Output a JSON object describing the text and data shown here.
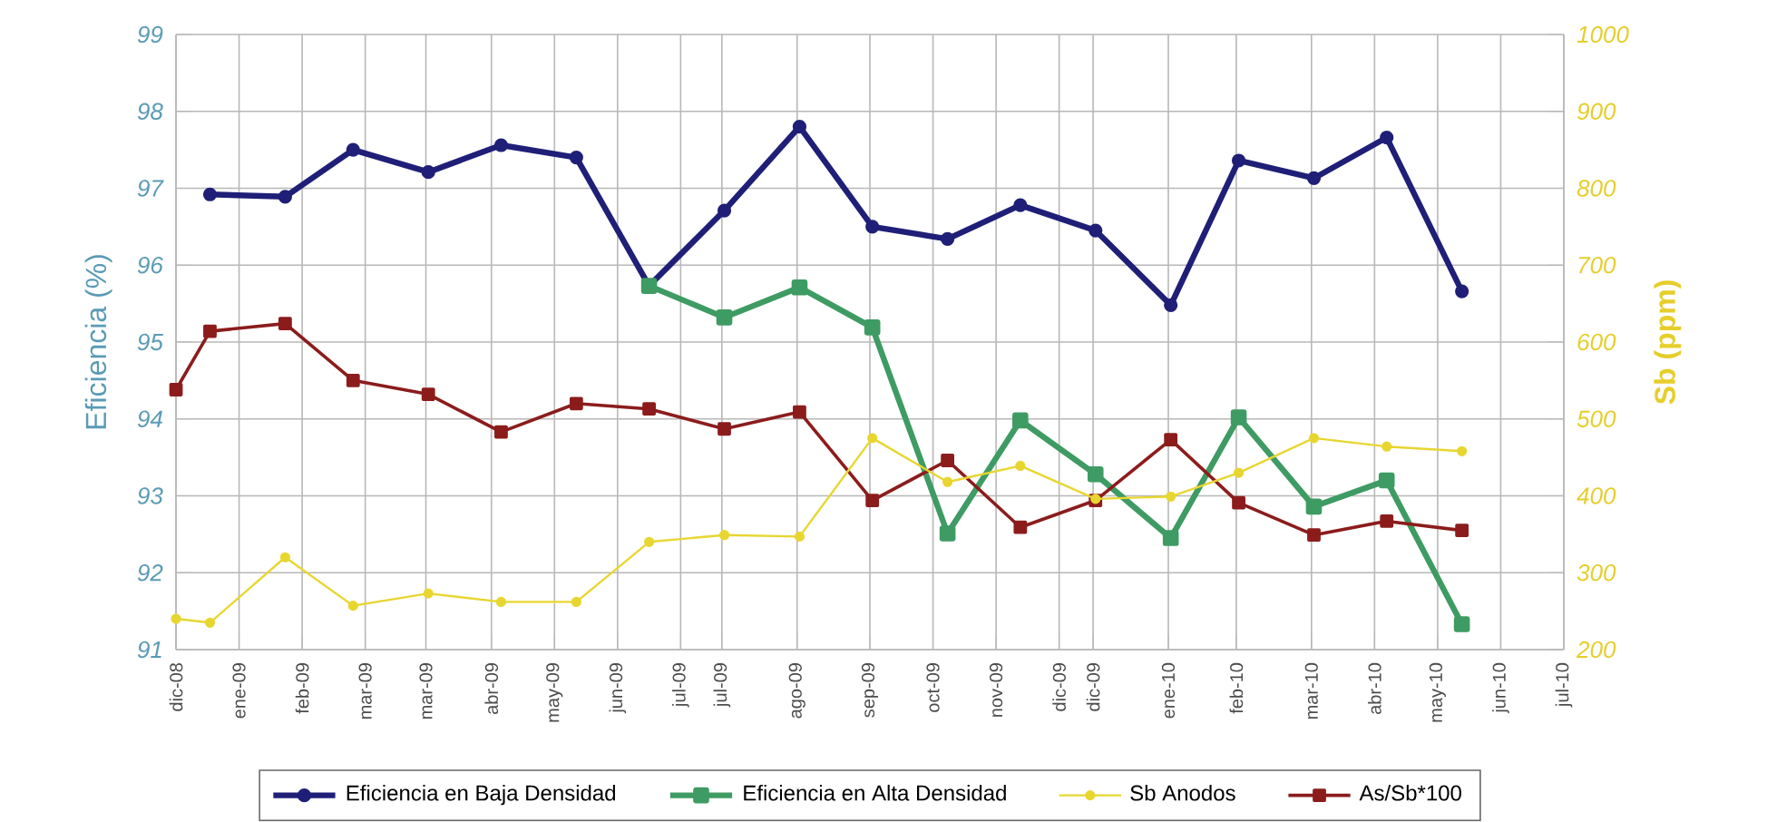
{
  "chart_data": {
    "type": "line",
    "ylabel": "Eficiencia (%)",
    "y2label": "Sb (ppm)",
    "xlim": [
      "2008-12-18",
      "2010-07-13"
    ],
    "xticks": [
      {
        "value": "2008-12-18",
        "label": "dic-08"
      },
      {
        "value": "2009-01-13",
        "label": "ene-09"
      },
      {
        "value": "2009-02-08",
        "label": "feb-09"
      },
      {
        "value": "2009-03-06",
        "label": "mar-09"
      },
      {
        "value": "2009-03-31",
        "label": "mar-09"
      },
      {
        "value": "2009-04-27",
        "label": "abr-09"
      },
      {
        "value": "2009-05-23",
        "label": "may-09"
      },
      {
        "value": "2009-06-18",
        "label": "jun-09"
      },
      {
        "value": "2009-07-14",
        "label": "jul-09"
      },
      {
        "value": "2009-07-31",
        "label": "jul-09"
      },
      {
        "value": "2009-08-31",
        "label": "ago-09"
      },
      {
        "value": "2009-09-30",
        "label": "sep-09"
      },
      {
        "value": "2009-10-26",
        "label": "oct-09"
      },
      {
        "value": "2009-11-21",
        "label": "nov-09"
      },
      {
        "value": "2009-12-17",
        "label": "dic-09"
      },
      {
        "value": "2009-12-31",
        "label": "dic-09"
      },
      {
        "value": "2010-01-31",
        "label": "ene-10"
      },
      {
        "value": "2010-02-28",
        "label": "feb-10"
      },
      {
        "value": "2010-03-31",
        "label": "mar-10"
      },
      {
        "value": "2010-04-26",
        "label": "abr-10"
      },
      {
        "value": "2010-05-22",
        "label": "may-10"
      },
      {
        "value": "2010-06-17",
        "label": "jun-10"
      },
      {
        "value": "2010-07-13",
        "label": "jul-10"
      }
    ],
    "ylim": [
      91,
      99
    ],
    "yticks": [
      91,
      92,
      93,
      94,
      95,
      96,
      97,
      98,
      99
    ],
    "y2lim": [
      200,
      1000
    ],
    "y2ticks": [
      200,
      300,
      400,
      500,
      600,
      700,
      800,
      900,
      1000
    ],
    "grid": true,
    "legend": "bottom",
    "x": [
      "2009-01-01",
      "2009-02-01",
      "2009-03-01",
      "2009-04-01",
      "2009-05-01",
      "2009-06-01",
      "2009-07-01",
      "2009-08-01",
      "2009-09-01",
      "2009-10-01",
      "2009-11-01",
      "2009-12-01",
      "2010-01-01",
      "2010-02-01",
      "2010-03-01",
      "2010-04-01",
      "2010-05-01",
      "2010-06-01"
    ],
    "series": [
      {
        "name": "Eficiencia en Baja Densidad",
        "color": "#1f1f78",
        "marker": "circle",
        "values": [
          96.92,
          96.89,
          97.5,
          97.21,
          97.56,
          97.4,
          95.73,
          96.71,
          97.8,
          96.5,
          96.34,
          96.78,
          96.45,
          95.48,
          97.36,
          97.13,
          97.66,
          95.66
        ]
      },
      {
        "name": "Eficiencia en Alta Densidad",
        "color": "#3e9b63",
        "marker": "square",
        "x": [
          "2009-07-01",
          "2009-08-01",
          "2009-09-01",
          "2009-10-01",
          "2009-11-01",
          "2009-12-01",
          "2010-01-01",
          "2010-02-01",
          "2010-03-01",
          "2010-04-01",
          "2010-05-01",
          "2010-06-01"
        ],
        "values": [
          95.73,
          95.32,
          95.71,
          95.19,
          92.51,
          93.98,
          93.28,
          92.45,
          94.02,
          92.86,
          93.2,
          91.33
        ]
      },
      {
        "name": "Sb Anodos",
        "color": "#e8d630",
        "marker": "circle",
        "axis": "y2",
        "x": [
          "2008-12-18",
          "2009-01-01",
          "2009-02-01",
          "2009-03-01",
          "2009-04-01",
          "2009-05-01",
          "2009-06-01",
          "2009-07-01",
          "2009-08-01",
          "2009-09-01",
          "2009-10-01",
          "2009-11-01",
          "2009-12-01",
          "2010-01-01",
          "2010-02-01",
          "2010-03-01",
          "2010-04-01",
          "2010-05-01",
          "2010-06-01"
        ],
        "values": [
          240,
          235,
          320,
          257,
          273,
          262,
          262,
          340,
          349,
          347,
          475,
          418,
          439,
          396,
          399,
          430,
          475,
          464,
          458
        ]
      },
      {
        "name": "As/Sb*100",
        "color": "#8c1c1c",
        "marker": "square",
        "x": [
          "2008-12-18",
          "2009-01-01",
          "2009-02-01",
          "2009-03-01",
          "2009-04-01",
          "2009-05-01",
          "2009-06-01",
          "2009-07-01",
          "2009-08-01",
          "2009-09-01",
          "2009-10-01",
          "2009-11-01",
          "2009-12-01",
          "2010-01-01",
          "2010-02-01",
          "2010-03-01",
          "2010-04-01",
          "2010-05-01",
          "2010-06-01"
        ],
        "values": [
          94.38,
          95.14,
          95.24,
          94.5,
          94.32,
          93.83,
          94.2,
          94.13,
          93.87,
          94.09,
          92.94,
          93.46,
          92.59,
          92.94,
          93.73,
          92.91,
          92.49,
          92.67,
          92.55
        ]
      }
    ]
  }
}
